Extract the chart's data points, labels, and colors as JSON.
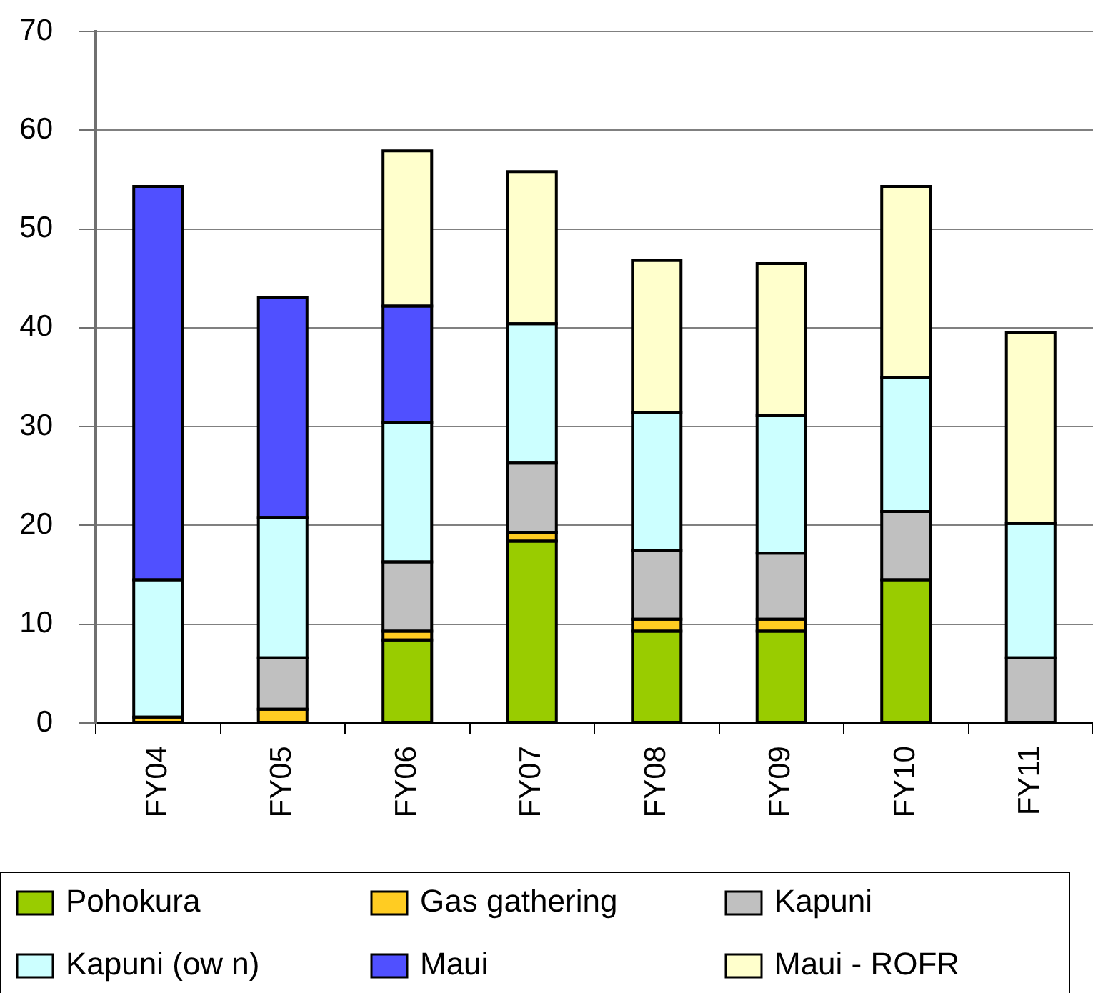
{
  "chart_data": {
    "type": "bar",
    "stacked": true,
    "categories": [
      "FY04",
      "FY05",
      "FY06",
      "FY07",
      "FY08",
      "FY09",
      "FY10",
      "FY11"
    ],
    "series": [
      {
        "name": "Pohokura",
        "color": "#99cc00",
        "values": [
          null,
          null,
          8.4,
          18.4,
          9.3,
          9.3,
          14.5,
          null
        ]
      },
      {
        "name": "Gas gathering",
        "color": "#ffcc22",
        "values": [
          0.6,
          1.4,
          0.9,
          0.9,
          1.2,
          1.2,
          null,
          null
        ]
      },
      {
        "name": "Kapuni",
        "color": "#c0c0c0",
        "values": [
          null,
          5.2,
          7.0,
          7.0,
          7.0,
          6.7,
          6.9,
          6.6
        ]
      },
      {
        "name": "Kapuni (ow n)",
        "color": "#ccffff",
        "values": [
          13.9,
          14.2,
          14.1,
          14.1,
          13.9,
          13.9,
          13.6,
          13.6
        ]
      },
      {
        "name": "Maui",
        "color": "#5050ff",
        "values": [
          39.8,
          22.3,
          11.8,
          null,
          null,
          null,
          null,
          null
        ]
      },
      {
        "name": "Maui - ROFR",
        "color": "#ffffcc",
        "values": [
          null,
          null,
          15.7,
          15.4,
          15.4,
          15.4,
          19.3,
          19.3
        ]
      }
    ],
    "ylim": [
      0,
      70
    ],
    "yticks": [
      0,
      10,
      20,
      30,
      40,
      50,
      60,
      70
    ],
    "grid": "y",
    "legend": "bottom"
  }
}
